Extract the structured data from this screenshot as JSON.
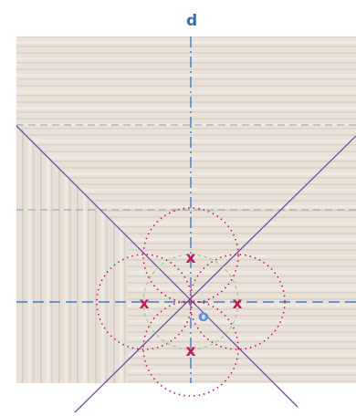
{
  "labels": {
    "axis_d": "d",
    "center_o": "o",
    "cross_marks": [
      "x",
      "x",
      "x",
      "x"
    ]
  },
  "colors": {
    "blue_label": "#3d6aa8",
    "axis_dash": "#4a79bf",
    "purple_line": "#6e4f9e",
    "magenta": "#c2185b",
    "center_o": "#5b8fd4",
    "wood_light": "#e9e3da",
    "wood_dark": "#d7cfc3"
  }
}
